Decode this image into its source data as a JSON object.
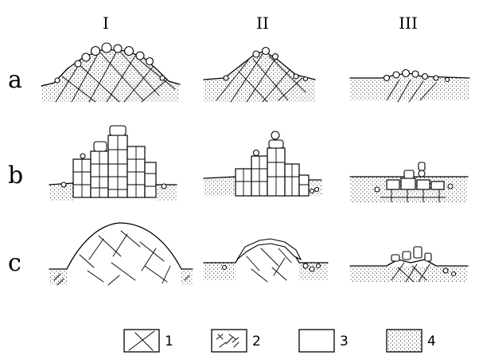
{
  "columns": [
    "I",
    "II",
    "III"
  ],
  "rows": [
    "a",
    "b",
    "c"
  ],
  "legend": [
    {
      "label": "1",
      "pattern": "cross-joints"
    },
    {
      "label": "2",
      "pattern": "fine-fractures"
    },
    {
      "label": "3",
      "pattern": "blank"
    },
    {
      "label": "4",
      "pattern": "stipple"
    }
  ],
  "colors": {
    "ink": "#000000",
    "paper": "#ffffff"
  }
}
